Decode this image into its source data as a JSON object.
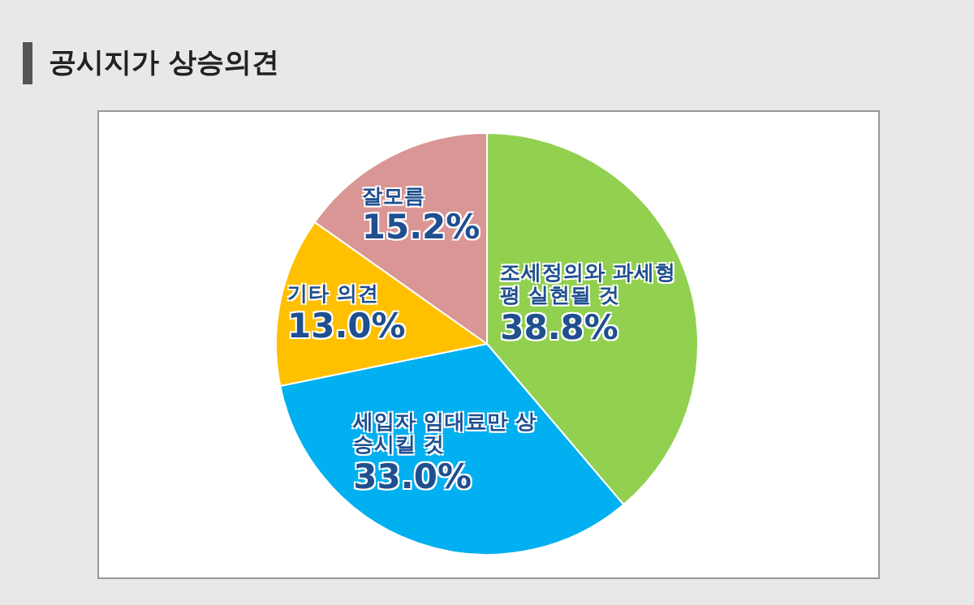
{
  "chart_data": {
    "type": "pie",
    "title": "공시지가 상승의견",
    "categories": [
      "조세정의와 과세형평 실현될 것",
      "세입자 임대료만 상승시킬 것",
      "기타 의견",
      "잘모름"
    ],
    "values": [
      38.8,
      33.0,
      13.0,
      15.2
    ],
    "colors": [
      "#92d050",
      "#00b0f0",
      "#ffc000",
      "#d99694"
    ],
    "value_labels": [
      "38.8%",
      "33.0%",
      "13.0%",
      "15.2%"
    ]
  }
}
